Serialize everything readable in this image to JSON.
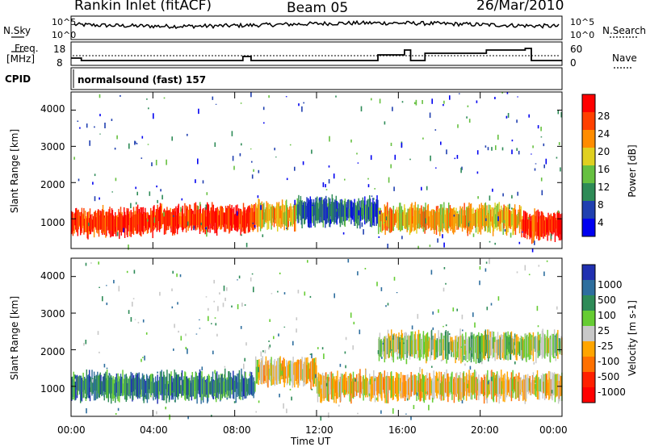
{
  "header": {
    "station": "Rankin Inlet (fitACF)",
    "beam": "Beam 05",
    "date": "26/Mar/2010"
  },
  "noise_panel": {
    "left_label": "N.Sky",
    "right_label": "N.Search",
    "left_ticks": [
      "10^5",
      "10^0"
    ],
    "right_ticks": [
      "10^5",
      "10^0"
    ]
  },
  "freq_panel": {
    "left_label_line1": "Freq.",
    "left_label_line2": "[MHz]",
    "left_ticks": [
      "18",
      "8"
    ],
    "right_ticks": [
      "60",
      "0"
    ],
    "right_label": "Nave"
  },
  "cpid_panel": {
    "label": "CPID",
    "value": "normalsound (fast) 157"
  },
  "power_panel": {
    "ylabel": "Slant Range [km]",
    "yticks": [
      "4000",
      "3000",
      "2000",
      "1000"
    ],
    "colorbar_label": "Power [dB]",
    "colorbar_ticks": [
      "28",
      "24",
      "20",
      "16",
      "12",
      "8",
      "4"
    ],
    "colors": [
      "#0000f0",
      "#2040b0",
      "#2e8b57",
      "#66c040",
      "#e0d020",
      "#ff8c00",
      "#ff4000",
      "#ff0000"
    ]
  },
  "velocity_panel": {
    "ylabel": "Slant Range [km]",
    "yticks": [
      "4000",
      "3000",
      "2000",
      "1000"
    ],
    "colorbar_label": "Velocity [m s-1]",
    "colorbar_ticks": [
      "1000",
      "500",
      "100",
      "25",
      "-25",
      "-100",
      "-500",
      "-1000"
    ],
    "colors": [
      "#2030b0",
      "#2e6e9e",
      "#2e8b57",
      "#66cc33",
      "#c8c8c8",
      "#ffa500",
      "#ff7000",
      "#ff2000",
      "#ff0000"
    ]
  },
  "xaxis": {
    "label": "Time UT",
    "ticks": [
      "00:00",
      "04:00",
      "08:00",
      "12:00",
      "16:00",
      "20:00",
      "00:00"
    ]
  },
  "chart_data": {
    "type": "heatmap",
    "x_range_hours": [
      0,
      24
    ],
    "y_range_km": [
      180,
      4500
    ],
    "power_bands": [
      {
        "t_start": 0,
        "t_end": 4,
        "range_center_km": 900,
        "power_db": 28
      },
      {
        "t_start": 4,
        "t_end": 9,
        "range_center_km": 1000,
        "power_db": 26
      },
      {
        "t_start": 9,
        "t_end": 11,
        "range_center_km": 1100,
        "power_db": 20
      },
      {
        "t_start": 11,
        "t_end": 15,
        "range_center_km": 1200,
        "power_db": 8
      },
      {
        "t_start": 15,
        "t_end": 22,
        "range_center_km": 1000,
        "power_db": 20
      },
      {
        "t_start": 22,
        "t_end": 24,
        "range_center_km": 800,
        "power_db": 26
      }
    ],
    "velocity_bands": [
      {
        "t_start": 0,
        "t_end": 9,
        "range_center_km": 1000,
        "velocity_ms": 100
      },
      {
        "t_start": 9,
        "t_end": 12,
        "range_center_km": 1400,
        "velocity_ms": -100
      },
      {
        "t_start": 12,
        "t_end": 24,
        "range_center_km": 1000,
        "velocity_ms": -100
      },
      {
        "t_start": 15,
        "t_end": 24,
        "range_center_km": 2100,
        "velocity_ms": -25
      }
    ]
  }
}
